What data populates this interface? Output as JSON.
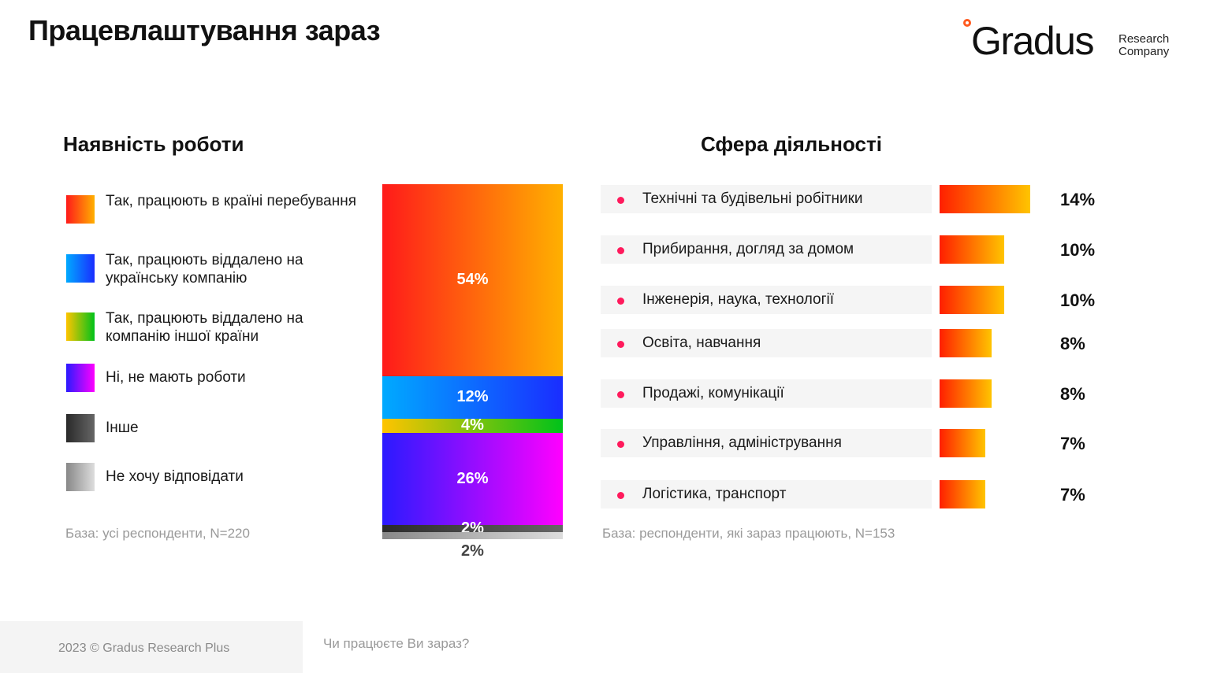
{
  "page": {
    "title": "Працевлаштування зараз",
    "footer": "2023 © Gradus Research Plus",
    "question": "Чи працюєте Ви зараз?"
  },
  "logo": {
    "word": "Gradus",
    "sub_line1": "Research",
    "sub_line2": "Company",
    "accent_color": "#ff5a1f"
  },
  "left_panel": {
    "title": "Наявність роботи",
    "base": "База: усі респонденти, N=220",
    "legend": [
      {
        "label": "Так, працюють в країні перебування",
        "gradient": [
          "#ff1a1a",
          "#ffb000"
        ]
      },
      {
        "label": "Так, працюють віддалено на українську компанію",
        "gradient": [
          "#00aaff",
          "#1a2dff"
        ]
      },
      {
        "label": "Так, працюють віддалено на компанію іншої країни",
        "gradient": [
          "#ffc400",
          "#00c21a"
        ]
      },
      {
        "label": "Ні, не мають роботи",
        "gradient": [
          "#2a1aff",
          "#ff00ff"
        ]
      },
      {
        "label": "Інше",
        "gradient": [
          "#2a2a2a",
          "#666666"
        ]
      },
      {
        "label": "Не хочу відповідати",
        "gradient": [
          "#888888",
          "#dddddd"
        ]
      }
    ]
  },
  "right_panel": {
    "title": "Сфера діяльності",
    "base": "База: респонденти, які зараз працюють, N=153"
  },
  "chart_data": [
    {
      "type": "bar",
      "orientation": "stacked-vertical",
      "categories": [
        "Так, працюють в країні перебування",
        "Так, працюють віддалено на українську компанію",
        "Так, працюють віддалено на компанію іншої країни",
        "Ні, не мають роботи",
        "Інше",
        "Не хочу відповідати"
      ],
      "values": [
        54,
        12,
        4,
        26,
        2,
        2
      ],
      "value_labels": [
        "54%",
        "12%",
        "4%",
        "26%",
        "2%",
        "2%"
      ],
      "title": "Наявність роботи",
      "unit": "%"
    },
    {
      "type": "bar",
      "orientation": "horizontal",
      "categories": [
        "Технічні та будівельні робітники",
        "Прибирання, догляд за домом",
        "Інженерія, наука, технології",
        "Освіта, навчання",
        "Продажі, комунікації",
        "Управління, адміністрування",
        "Логістика, транспорт"
      ],
      "values": [
        14,
        10,
        10,
        8,
        8,
        7,
        7
      ],
      "value_labels": [
        "14%",
        "10%",
        "10%",
        "8%",
        "8%",
        "7%",
        "7%"
      ],
      "title": "Сфера діяльності",
      "unit": "%",
      "bar_gradient": [
        "#ff1f00",
        "#ffc400"
      ]
    }
  ]
}
